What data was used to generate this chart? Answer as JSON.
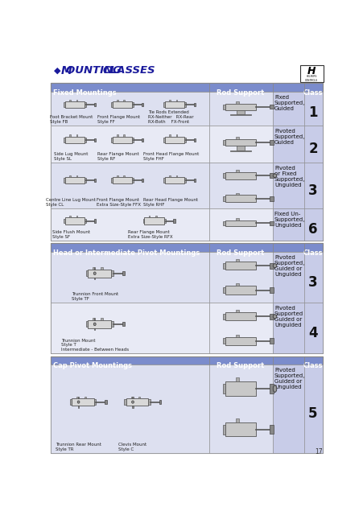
{
  "title": "Mounting Classes",
  "title_color": "#1a1a9c",
  "background": "#ffffff",
  "header_bg": "#7b8ccc",
  "header_text_color": "#ffffff",
  "class_bg": "#c8cce8",
  "row_bg1": "#dde0f0",
  "row_bg2": "#e8eaf5",
  "border_col": "#888888",
  "text_col": "#111111",
  "dark_blue": "#1a1a9c",
  "page_num": "17",
  "sections": [
    {
      "header": "Fixed Mountings",
      "rows": [
        {
          "desc": "Fixed\nSupported,\nGuided",
          "class_num": "1",
          "n_images": 1
        },
        {
          "desc": "Pivoted\nSupported,\nGuided",
          "class_num": "2",
          "n_images": 1
        },
        {
          "desc": "Pivoted\nor Fixed\nSupported,\nUnguided",
          "class_num": "3",
          "n_images": 2
        },
        {
          "desc": "Fixed Un-\nSupported,\nUnguided",
          "class_num": "6",
          "n_images": 1
        }
      ],
      "left_rows": [
        [
          [
            "Foot Bracket Mount\nStyle FB",
            0.13
          ],
          [
            "Front Flange Mount\nStyle FF",
            0.43
          ],
          [
            "Tie Rods Extended\nRX-Neither   RX-Rear\nRX-Both    FX-Front",
            0.76
          ]
        ],
        [
          [
            "Side Lug Mount\nStyle SL",
            0.13
          ],
          [
            "Rear Flange Mount\nStyle RF",
            0.43
          ],
          [
            "Front Head Flange Mount\nStyle FHF",
            0.76
          ]
        ],
        [
          [
            "Centre Line Lug Mount\nStyle CL",
            0.13
          ],
          [
            "Front Flange Mount\nExtra Size-Style FFX",
            0.43
          ],
          [
            "Rear Head Flange Mount\nStyle RHF",
            0.76
          ]
        ],
        [
          [
            "Side Flush Mount\nStyle SF",
            0.13
          ],
          [
            "Rear Flange Mount\nExtra Size-Style RFX",
            0.62
          ]
        ]
      ]
    },
    {
      "header": "Head or Intermediate Pivot Mountings",
      "rows": [
        {
          "desc": "Pivoted\nSupported,\nGuided or\nUnguided",
          "class_num": "3",
          "n_images": 2
        },
        {
          "desc": "Pivoted\nSupported\nGuided or\nUnguided",
          "class_num": "4",
          "n_images": 2
        }
      ],
      "left_rows": [
        [
          [
            "Trunnion Front Mount\nStyle TF",
            0.3
          ]
        ],
        [
          [
            "Trunnion Mount\nStyle T\nIntermediate - Between Heads",
            0.3
          ]
        ]
      ]
    },
    {
      "header": "Cap Pivot Mountings",
      "rows": [
        {
          "desc": "Pivoted\nSupported,\nGuided or\nUnguided",
          "class_num": "5",
          "n_images": 2
        }
      ],
      "left_rows": [
        [
          [
            "Trunnion Rear Mount\nStyle TR",
            0.18
          ],
          [
            "Clevis Mount\nStyle C",
            0.55
          ]
        ]
      ]
    }
  ]
}
